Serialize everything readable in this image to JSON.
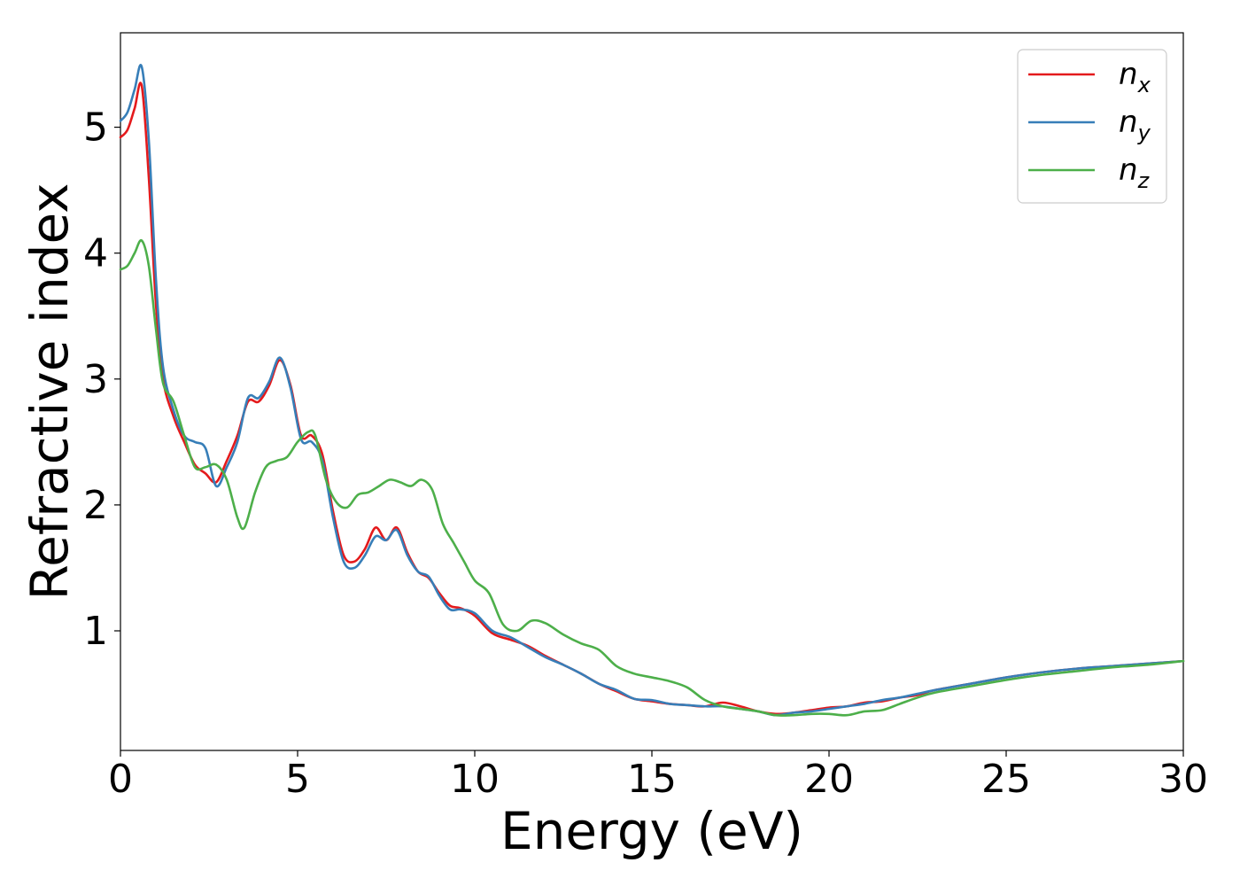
{
  "chart_data": {
    "type": "line",
    "title": "",
    "xlabel": "Energy (eV)",
    "ylabel": "Refractive index",
    "xlim": [
      0,
      30
    ],
    "ylim": [
      0.05,
      5.75
    ],
    "xticks": [
      0,
      5,
      10,
      15,
      20,
      25,
      30
    ],
    "yticks": [
      1,
      2,
      3,
      4,
      5
    ],
    "grid": false,
    "legend_position": "top-right",
    "series": [
      {
        "name": "n_x",
        "symbol": "n",
        "subscript": "x",
        "color": "#e41a1c",
        "x": [
          0,
          0.2,
          0.4,
          0.6,
          0.8,
          1.0,
          1.2,
          1.5,
          1.8,
          2.1,
          2.4,
          2.7,
          3.0,
          3.3,
          3.6,
          3.9,
          4.2,
          4.5,
          4.8,
          5.1,
          5.4,
          5.7,
          6.0,
          6.3,
          6.6,
          6.9,
          7.2,
          7.5,
          7.8,
          8.1,
          8.4,
          8.7,
          9.0,
          9.3,
          9.6,
          10.0,
          10.5,
          11.0,
          11.5,
          12.0,
          12.5,
          13.0,
          13.5,
          14.0,
          14.5,
          15.0,
          15.5,
          16.0,
          16.5,
          17.0,
          17.5,
          18.0,
          18.5,
          19.0,
          19.5,
          20.0,
          20.5,
          21.0,
          21.5,
          22.0,
          22.5,
          23.0,
          24.0,
          25.0,
          26.0,
          27.0,
          28.0,
          29.0,
          30.0
        ],
        "values": [
          4.92,
          4.98,
          5.15,
          5.33,
          4.6,
          3.6,
          3.0,
          2.7,
          2.5,
          2.32,
          2.25,
          2.18,
          2.35,
          2.55,
          2.82,
          2.82,
          2.95,
          3.15,
          2.95,
          2.55,
          2.55,
          2.4,
          1.95,
          1.6,
          1.55,
          1.65,
          1.82,
          1.72,
          1.82,
          1.62,
          1.47,
          1.42,
          1.3,
          1.2,
          1.18,
          1.12,
          0.98,
          0.93,
          0.88,
          0.8,
          0.73,
          0.66,
          0.58,
          0.52,
          0.46,
          0.44,
          0.42,
          0.41,
          0.4,
          0.43,
          0.4,
          0.36,
          0.34,
          0.35,
          0.37,
          0.39,
          0.4,
          0.43,
          0.44,
          0.47,
          0.49,
          0.53,
          0.58,
          0.63,
          0.67,
          0.7,
          0.72,
          0.74,
          0.76
        ]
      },
      {
        "name": "n_y",
        "symbol": "n",
        "subscript": "y",
        "color": "#377eb8",
        "x": [
          0,
          0.2,
          0.4,
          0.6,
          0.8,
          1.0,
          1.2,
          1.5,
          1.8,
          2.1,
          2.4,
          2.7,
          3.0,
          3.3,
          3.6,
          3.9,
          4.2,
          4.5,
          4.8,
          5.1,
          5.4,
          5.7,
          6.0,
          6.3,
          6.6,
          6.9,
          7.2,
          7.5,
          7.8,
          8.1,
          8.4,
          8.7,
          9.0,
          9.3,
          9.6,
          10.0,
          10.5,
          11.0,
          11.5,
          12.0,
          12.5,
          13.0,
          13.5,
          14.0,
          14.5,
          15.0,
          15.5,
          16.0,
          16.5,
          17.0,
          17.5,
          18.0,
          18.5,
          19.0,
          19.5,
          20.0,
          20.5,
          21.0,
          21.5,
          22.0,
          22.5,
          23.0,
          24.0,
          25.0,
          26.0,
          27.0,
          28.0,
          29.0,
          30.0
        ],
        "values": [
          5.05,
          5.12,
          5.3,
          5.48,
          4.9,
          3.8,
          3.1,
          2.75,
          2.55,
          2.5,
          2.45,
          2.15,
          2.3,
          2.5,
          2.85,
          2.85,
          2.98,
          3.17,
          2.93,
          2.52,
          2.5,
          2.35,
          1.9,
          1.55,
          1.5,
          1.6,
          1.75,
          1.72,
          1.8,
          1.6,
          1.47,
          1.43,
          1.28,
          1.17,
          1.17,
          1.14,
          1.0,
          0.95,
          0.87,
          0.79,
          0.73,
          0.66,
          0.58,
          0.53,
          0.46,
          0.45,
          0.42,
          0.41,
          0.4,
          0.4,
          0.38,
          0.36,
          0.33,
          0.35,
          0.36,
          0.38,
          0.4,
          0.42,
          0.45,
          0.47,
          0.5,
          0.53,
          0.58,
          0.63,
          0.67,
          0.7,
          0.72,
          0.74,
          0.76
        ]
      },
      {
        "name": "n_z",
        "symbol": "n",
        "subscript": "z",
        "color": "#4daf4a",
        "x": [
          0,
          0.2,
          0.4,
          0.6,
          0.8,
          1.0,
          1.2,
          1.5,
          1.8,
          2.1,
          2.4,
          2.7,
          3.0,
          3.3,
          3.5,
          3.8,
          4.1,
          4.4,
          4.7,
          5.0,
          5.3,
          5.5,
          5.8,
          6.1,
          6.4,
          6.7,
          7.0,
          7.3,
          7.6,
          7.9,
          8.2,
          8.5,
          8.8,
          9.1,
          9.4,
          9.7,
          10.0,
          10.4,
          10.8,
          11.2,
          11.6,
          12.0,
          12.5,
          13.0,
          13.5,
          14.0,
          14.5,
          15.0,
          15.5,
          16.0,
          16.5,
          17.0,
          17.5,
          18.0,
          18.5,
          19.0,
          19.5,
          20.0,
          20.5,
          21.0,
          21.5,
          22.0,
          22.5,
          23.0,
          24.0,
          25.0,
          26.0,
          27.0,
          28.0,
          29.0,
          30.0
        ],
        "values": [
          3.87,
          3.9,
          4.0,
          4.1,
          3.9,
          3.4,
          2.97,
          2.82,
          2.55,
          2.3,
          2.3,
          2.32,
          2.2,
          1.9,
          1.82,
          2.1,
          2.3,
          2.35,
          2.38,
          2.5,
          2.58,
          2.55,
          2.2,
          2.02,
          1.98,
          2.08,
          2.1,
          2.15,
          2.2,
          2.18,
          2.15,
          2.2,
          2.12,
          1.85,
          1.7,
          1.55,
          1.4,
          1.3,
          1.05,
          1.0,
          1.08,
          1.06,
          0.97,
          0.9,
          0.85,
          0.72,
          0.66,
          0.63,
          0.6,
          0.55,
          0.45,
          0.4,
          0.38,
          0.36,
          0.33,
          0.33,
          0.34,
          0.34,
          0.33,
          0.36,
          0.37,
          0.42,
          0.47,
          0.51,
          0.56,
          0.61,
          0.65,
          0.68,
          0.71,
          0.73,
          0.76
        ]
      }
    ]
  }
}
